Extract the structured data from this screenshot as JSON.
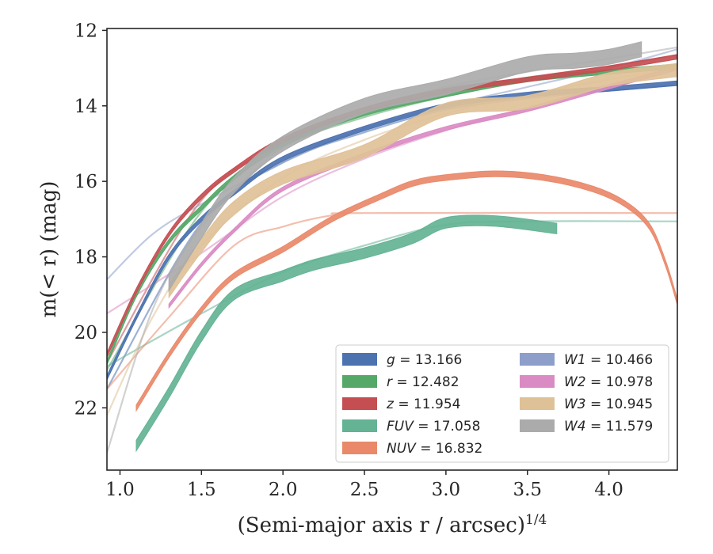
{
  "chart_data": {
    "type": "line",
    "xlabel_main": "(Semi-major axis r / arcsec)",
    "xlabel_sup": "1/4",
    "ylabel": "m(< r) (mag)",
    "xlim": [
      0.92,
      4.42
    ],
    "ylim": [
      23.65,
      11.95
    ],
    "y_inverted": true,
    "grid": false,
    "legend_position": "lower-right",
    "x_ticks": [
      "1.0",
      "1.5",
      "2.0",
      "2.5",
      "3.0",
      "3.5",
      "4.0"
    ],
    "y_ticks": [
      "12",
      "14",
      "16",
      "18",
      "20",
      "22"
    ],
    "series": [
      {
        "band": "g",
        "value": "13.166",
        "color": "#4c72b0",
        "profile": [
          [
            0.92,
            21.2
          ],
          [
            1.1,
            19.6
          ],
          [
            1.3,
            18.0
          ],
          [
            1.5,
            17.0
          ],
          [
            1.7,
            16.3
          ],
          [
            2.0,
            15.4
          ],
          [
            2.5,
            14.6
          ],
          [
            3.0,
            14.0
          ],
          [
            3.5,
            13.7
          ],
          [
            4.0,
            13.55
          ],
          [
            4.42,
            13.4
          ]
        ],
        "width": 0.12,
        "model": [
          [
            0.92,
            21.5
          ],
          [
            1.5,
            17.1
          ],
          [
            2.0,
            15.5
          ],
          [
            2.5,
            14.7
          ],
          [
            3.0,
            14.1
          ],
          [
            3.5,
            13.8
          ],
          [
            4.0,
            13.6
          ],
          [
            4.42,
            13.45
          ]
        ]
      },
      {
        "band": "r",
        "value": "12.482",
        "color": "#55a868",
        "profile": [
          [
            0.92,
            20.8
          ],
          [
            1.1,
            19.0
          ],
          [
            1.3,
            17.6
          ],
          [
            1.5,
            16.7
          ],
          [
            1.7,
            15.9
          ],
          [
            2.0,
            15.0
          ],
          [
            2.5,
            14.2
          ],
          [
            3.0,
            13.7
          ],
          [
            3.5,
            13.3
          ],
          [
            4.0,
            13.1
          ],
          [
            4.42,
            12.95
          ]
        ],
        "width": 0.12,
        "model": [
          [
            0.92,
            21.0
          ],
          [
            1.5,
            16.8
          ],
          [
            2.0,
            15.1
          ],
          [
            2.5,
            14.3
          ],
          [
            3.0,
            13.75
          ],
          [
            3.5,
            13.35
          ],
          [
            4.0,
            13.1
          ],
          [
            4.42,
            12.9
          ]
        ]
      },
      {
        "band": "z",
        "value": "11.954",
        "color": "#c44e52",
        "profile": [
          [
            0.92,
            20.6
          ],
          [
            1.1,
            18.9
          ],
          [
            1.3,
            17.4
          ],
          [
            1.5,
            16.4
          ],
          [
            1.7,
            15.7
          ],
          [
            2.0,
            14.9
          ],
          [
            2.5,
            14.1
          ],
          [
            3.0,
            13.6
          ],
          [
            3.5,
            13.3
          ],
          [
            4.0,
            13.0
          ],
          [
            4.42,
            12.7
          ]
        ],
        "width": 0.12,
        "model": [
          [
            0.92,
            20.8
          ],
          [
            1.5,
            16.5
          ],
          [
            2.0,
            15.0
          ],
          [
            2.5,
            14.15
          ],
          [
            3.0,
            13.6
          ],
          [
            3.5,
            13.25
          ],
          [
            4.0,
            12.95
          ],
          [
            4.42,
            12.65
          ]
        ]
      },
      {
        "band": "FUV",
        "value": "17.058",
        "color": "#64b395",
        "profile": [
          [
            1.1,
            23.0
          ],
          [
            1.3,
            21.6
          ],
          [
            1.5,
            20.1
          ],
          [
            1.7,
            19.0
          ],
          [
            2.0,
            18.5
          ],
          [
            2.2,
            18.2
          ],
          [
            2.5,
            17.9
          ],
          [
            2.8,
            17.5
          ],
          [
            3.0,
            17.1
          ],
          [
            3.3,
            17.05
          ],
          [
            3.68,
            17.25
          ]
        ],
        "width": 0.28,
        "model": [
          [
            0.92,
            20.9
          ],
          [
            1.5,
            19.5
          ],
          [
            2.0,
            18.4
          ],
          [
            2.5,
            17.7
          ],
          [
            3.0,
            17.15
          ],
          [
            3.5,
            17.06
          ],
          [
            4.42,
            17.06
          ]
        ]
      },
      {
        "band": "NUV",
        "value": "16.832",
        "color": "#e9896a",
        "profile": [
          [
            1.1,
            22.0
          ],
          [
            1.3,
            20.6
          ],
          [
            1.5,
            19.4
          ],
          [
            1.7,
            18.5
          ],
          [
            2.0,
            17.8
          ],
          [
            2.3,
            17.0
          ],
          [
            2.6,
            16.4
          ],
          [
            2.8,
            16.05
          ],
          [
            3.0,
            15.9
          ],
          [
            3.3,
            15.8
          ],
          [
            3.6,
            15.9
          ],
          [
            3.9,
            16.2
          ],
          [
            4.1,
            16.6
          ],
          [
            4.25,
            17.2
          ],
          [
            4.35,
            18.2
          ],
          [
            4.42,
            19.2
          ]
        ],
        "width": 0.15,
        "model": [
          [
            0.92,
            21.5
          ],
          [
            1.3,
            19.6
          ],
          [
            1.7,
            17.7
          ],
          [
            2.0,
            17.2
          ],
          [
            2.3,
            16.9
          ],
          [
            2.5,
            16.84
          ],
          [
            4.42,
            16.84
          ]
        ]
      },
      {
        "band": "W1",
        "value": "10.466",
        "color": "#8c9ec9",
        "profile": [],
        "width": 0.0,
        "model": [
          [
            0.92,
            18.6
          ],
          [
            1.2,
            17.4
          ],
          [
            1.5,
            16.6
          ],
          [
            2.0,
            15.5
          ],
          [
            2.5,
            14.6
          ],
          [
            3.0,
            14.0
          ],
          [
            3.5,
            13.5
          ],
          [
            4.0,
            13.0
          ],
          [
            4.42,
            12.5
          ]
        ]
      },
      {
        "band": "W2",
        "value": "10.978",
        "color": "#da8bc3",
        "profile": [
          [
            1.3,
            19.3
          ],
          [
            1.5,
            18.2
          ],
          [
            1.7,
            17.3
          ],
          [
            2.0,
            16.2
          ],
          [
            2.5,
            15.3
          ],
          [
            3.0,
            14.6
          ],
          [
            3.5,
            14.1
          ],
          [
            4.0,
            13.5
          ],
          [
            4.42,
            13.0
          ]
        ],
        "width": 0.1,
        "model": [
          [
            0.92,
            19.5
          ],
          [
            1.5,
            17.9
          ],
          [
            2.0,
            16.4
          ],
          [
            2.5,
            15.4
          ],
          [
            3.0,
            14.65
          ],
          [
            3.5,
            14.05
          ],
          [
            4.0,
            13.45
          ],
          [
            4.42,
            12.95
          ]
        ]
      },
      {
        "band": "W3",
        "value": "10.945",
        "color": "#dfc198",
        "profile": [
          [
            1.3,
            18.9
          ],
          [
            1.5,
            17.7
          ],
          [
            1.7,
            16.7
          ],
          [
            2.0,
            15.9
          ],
          [
            2.5,
            15.2
          ],
          [
            3.0,
            14.1
          ],
          [
            3.5,
            13.9
          ],
          [
            4.0,
            13.3
          ],
          [
            4.42,
            13.05
          ]
        ],
        "width": 0.35,
        "model": [
          [
            0.92,
            22.2
          ],
          [
            1.2,
            19.6
          ],
          [
            1.5,
            17.7
          ],
          [
            2.0,
            15.9
          ],
          [
            2.5,
            14.9
          ],
          [
            3.0,
            14.2
          ],
          [
            3.5,
            13.7
          ],
          [
            4.0,
            13.3
          ],
          [
            4.42,
            13.0
          ]
        ]
      },
      {
        "band": "W4",
        "value": "11.579",
        "color": "#ababab",
        "profile": [
          [
            1.3,
            18.7
          ],
          [
            1.5,
            17.3
          ],
          [
            1.7,
            16.1
          ],
          [
            2.0,
            15.0
          ],
          [
            2.5,
            14.0
          ],
          [
            3.0,
            13.5
          ],
          [
            3.5,
            12.9
          ],
          [
            3.8,
            12.8
          ],
          [
            4.0,
            12.7
          ],
          [
            4.2,
            12.5
          ]
        ],
        "width": 0.4,
        "model": [
          [
            0.92,
            23.2
          ],
          [
            1.2,
            19.4
          ],
          [
            1.5,
            17.2
          ],
          [
            2.0,
            15.1
          ],
          [
            2.5,
            14.1
          ],
          [
            3.0,
            13.5
          ],
          [
            3.5,
            13.1
          ],
          [
            4.0,
            12.75
          ],
          [
            4.42,
            12.45
          ]
        ]
      }
    ]
  }
}
